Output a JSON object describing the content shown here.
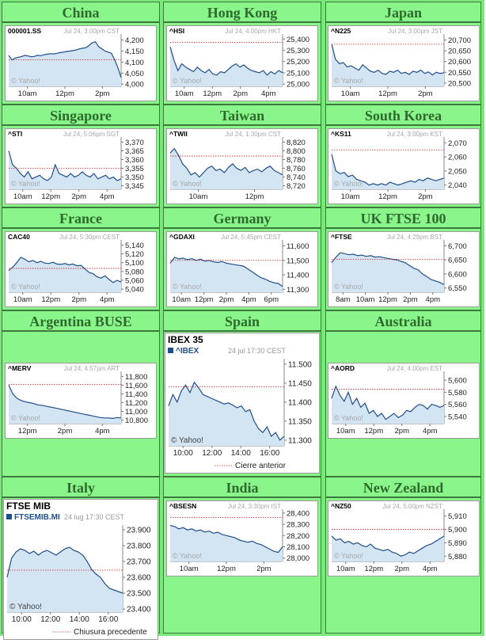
{
  "regions": [
    {
      "title": "China",
      "chart": {
        "symbol": "000001.SS",
        "time": "Jul 24, 3:00pm CST",
        "yticks": [
          "4,200",
          "4,150",
          "4,100",
          "4,050",
          "4,000"
        ],
        "ymin": 3990,
        "ymax": 4220,
        "xticks": [
          "10am",
          "12pm",
          "2pm"
        ],
        "prev": 4110,
        "values": [
          4130,
          4110,
          4118,
          4122,
          4125,
          4130,
          4128,
          4124,
          4126,
          4131,
          4129,
          4133,
          4136,
          4138,
          4137,
          4140,
          4143,
          4145,
          4148,
          4150,
          4152,
          4155,
          4160,
          4163,
          4165,
          4175,
          4188,
          4192,
          4170,
          4160,
          4150,
          4145,
          4140,
          4110,
          4075,
          4030
        ]
      }
    },
    {
      "title": "Hong Kong",
      "chart": {
        "symbol": "^HSI",
        "time": "Jul 24, 4:00pm HKT",
        "yticks": [
          "25,400",
          "25,300",
          "25,200",
          "25,100",
          "25,000"
        ],
        "ymin": 24980,
        "ymax": 25430,
        "xticks": [
          "10am",
          "12pm",
          "2pm",
          "4pm"
        ],
        "prev": 25370,
        "values": [
          25330,
          25210,
          25120,
          25180,
          25150,
          25130,
          25110,
          25150,
          25120,
          25100,
          25130,
          25090,
          25080,
          25110,
          25100,
          25130,
          25160,
          25180,
          25150,
          25170,
          25140,
          25120,
          25110,
          25100,
          25120,
          25080,
          25110,
          25090,
          25120,
          25100
        ]
      }
    },
    {
      "title": "Japan",
      "chart": {
        "symbol": "^N225",
        "time": "Jul 24, 3:00pm JST",
        "yticks": [
          "20,700",
          "20,650",
          "20,600",
          "20,550",
          "20,500"
        ],
        "ymin": 20485,
        "ymax": 20720,
        "xticks": [
          "10am",
          "12pm",
          "2pm"
        ],
        "prev": 20680,
        "values": [
          20680,
          20610,
          20590,
          20595,
          20575,
          20580,
          20570,
          20560,
          20585,
          20570,
          20555,
          20550,
          20560,
          20545,
          20540,
          20555,
          20550,
          20560,
          20545,
          20550,
          20540,
          20555,
          20550,
          20560,
          20545,
          20552,
          20538,
          20550,
          20545,
          20548
        ]
      }
    },
    {
      "title": "Singapore",
      "chart": {
        "symbol": "^STI",
        "time": "Jul 24, 5:06pm SGT",
        "yticks": [
          "3,370",
          "3,365",
          "3,360",
          "3,355",
          "3,350",
          "3,345"
        ],
        "ymin": 3343,
        "ymax": 3372,
        "xticks": [
          "10am",
          "12pm",
          "2pm",
          "4pm"
        ],
        "prev": 3355,
        "values": [
          3365,
          3357,
          3355,
          3352,
          3350,
          3353,
          3349,
          3350,
          3351,
          3349,
          3348,
          3350,
          3357,
          3352,
          3351,
          3350,
          3352,
          3350,
          3351,
          3353,
          3351,
          3350,
          3352,
          3349,
          3350,
          3351,
          3349,
          3350,
          3348,
          3349
        ]
      }
    },
    {
      "title": "Taiwan",
      "chart": {
        "symbol": "^TWII",
        "time": "Jul 24, 1:30pm CST",
        "yticks": [
          "8,820",
          "8,800",
          "8,780",
          "8,760",
          "8,740",
          "8,720"
        ],
        "ymin": 8712,
        "ymax": 8828,
        "xticks": [
          "10am",
          "12pm"
        ],
        "prev": 8788,
        "values": [
          8795,
          8805,
          8790,
          8770,
          8760,
          8745,
          8750,
          8740,
          8750,
          8760,
          8765,
          8755,
          8758,
          8750,
          8762,
          8770,
          8760,
          8755,
          8762,
          8750,
          8755,
          8758,
          8752,
          8760,
          8765,
          8755,
          8750,
          8745
        ]
      }
    },
    {
      "title": "South Korea",
      "chart": {
        "symbol": "^KS11",
        "time": "Jul 24, 3:00pm KST",
        "yticks": [
          "2,070",
          "2,060",
          "2,050",
          "2,040"
        ],
        "ymin": 2037,
        "ymax": 2073,
        "xticks": [
          "10am",
          "12pm",
          "2pm"
        ],
        "prev": 2065,
        "values": [
          2062,
          2050,
          2048,
          2049,
          2046,
          2047,
          2044,
          2043,
          2042,
          2040,
          2041,
          2040,
          2041,
          2040,
          2042,
          2041,
          2040,
          2041,
          2042,
          2043,
          2042,
          2044,
          2043,
          2045,
          2044,
          2043,
          2044,
          2045
        ]
      }
    },
    {
      "title": "France",
      "chart": {
        "symbol": "CAC40",
        "time": "Jul 24, 5:30pm CEST",
        "yticks": [
          "5,140",
          "5,120",
          "5,100",
          "5,080",
          "5,060",
          "5,040"
        ],
        "ymin": 5033,
        "ymax": 5148,
        "xticks": [
          "10am",
          "12pm",
          "2pm",
          "4pm"
        ],
        "prev": 5087,
        "values": [
          5082,
          5090,
          5100,
          5112,
          5108,
          5102,
          5105,
          5100,
          5103,
          5099,
          5098,
          5101,
          5097,
          5096,
          5098,
          5095,
          5097,
          5093,
          5094,
          5086,
          5078,
          5075,
          5068,
          5065,
          5070,
          5062,
          5055,
          5060,
          5056
        ]
      }
    },
    {
      "title": "Germany",
      "chart": {
        "symbol": "^GDAXI",
        "time": "Jul 24, 5:45pm CEST",
        "yticks": [
          "11,600",
          "11,500",
          "11,400",
          "11,300"
        ],
        "ymin": 11280,
        "ymax": 11630,
        "xticks": [
          "10am",
          "12pm",
          "2pm",
          "4pm",
          "6pm"
        ],
        "prev": 11500,
        "values": [
          11480,
          11520,
          11510,
          11515,
          11505,
          11512,
          11500,
          11508,
          11495,
          11500,
          11490,
          11485,
          11492,
          11480,
          11475,
          11470,
          11465,
          11460,
          11440,
          11420,
          11400,
          11380,
          11370,
          11355,
          11345,
          11340,
          11320
        ]
      }
    },
    {
      "title": "UK FTSE 100",
      "chart": {
        "symbol": "^FTSE",
        "time": "Jul 24, 4:29pm BST",
        "yticks": [
          "6,700",
          "6,650",
          "6,600",
          "6,550"
        ],
        "ymin": 6535,
        "ymax": 6715,
        "xticks": [
          "8am",
          "10am",
          "12pm",
          "2pm",
          "4pm"
        ],
        "prev": 6652,
        "values": [
          6640,
          6660,
          6675,
          6672,
          6668,
          6670,
          6665,
          6667,
          6662,
          6665,
          6660,
          6661,
          6658,
          6655,
          6652,
          6650,
          6645,
          6640,
          6630,
          6620,
          6615,
          6600,
          6590,
          6580,
          6575,
          6570,
          6562
        ]
      }
    },
    {
      "title": "Argentina BUSE",
      "chart": {
        "symbol": "^MERV",
        "time": "Jul 24, 4:57pm ART",
        "yticks": [
          "11,800",
          "11,600",
          "11,400",
          "11,200",
          "11,000",
          "10,800"
        ],
        "ymin": 10720,
        "ymax": 11880,
        "xticks": [
          "12pm",
          "2pm",
          "4pm"
        ],
        "prev": 11620,
        "values": [
          11600,
          11400,
          11300,
          11250,
          11220,
          11200,
          11180,
          11150,
          11140,
          11120,
          11100,
          11080,
          11060,
          11040,
          11020,
          11000,
          10980,
          10960,
          10940,
          10920,
          10900,
          10880,
          10860,
          10850,
          10850,
          10840,
          10860,
          10850
        ]
      }
    },
    {
      "title": "Spain",
      "chart": {
        "name": "IBEX 35",
        "symbol": "^IBEX",
        "time": "24 jul 17:30 CEST",
        "yticks": [
          "11.500",
          "11.450",
          "11.400",
          "11.350",
          "11.300"
        ],
        "ymin": 11285,
        "ymax": 11510,
        "xticks": [
          "10:00",
          "12:00",
          "14:00",
          "16:00"
        ],
        "prev": 11440,
        "legend": "Cierre anterior",
        "values": [
          11390,
          11420,
          11400,
          11430,
          11445,
          11425,
          11452,
          11438,
          11420,
          11415,
          11410,
          11405,
          11400,
          11395,
          11398,
          11392,
          11385,
          11390,
          11375,
          11380,
          11350,
          11330,
          11320,
          11335,
          11310,
          11320,
          11300,
          11310
        ]
      }
    },
    {
      "title": "Australia",
      "chart": {
        "symbol": "^AORD",
        "time": "Jul 24, 4:00pm EST",
        "yticks": [
          "5,600",
          "5,580",
          "5,560",
          "5,540"
        ],
        "ymin": 5528,
        "ymax": 5612,
        "xticks": [
          "10am",
          "12pm",
          "2pm",
          "4pm"
        ],
        "prev": 5585,
        "values": [
          5570,
          5590,
          5575,
          5565,
          5580,
          5560,
          5570,
          5555,
          5562,
          5545,
          5550,
          5540,
          5545,
          5535,
          5540,
          5545,
          5538,
          5542,
          5550,
          5548,
          5555,
          5560,
          5558,
          5552,
          5560,
          5558,
          5555,
          5558
        ]
      }
    },
    {
      "title": "Italy",
      "chart": {
        "name": "FTSE MIB",
        "symbol": "FTSEMIB.MI",
        "time": "24 lug 17:30 CEST",
        "yticks": [
          "23.900",
          "23.800",
          "23.700",
          "23.600",
          "23.500",
          "23.400"
        ],
        "ymin": 23380,
        "ymax": 23920,
        "xticks": [
          "10:00",
          "12:00",
          "14:00",
          "16:00"
        ],
        "prev": 23645,
        "legend": "Chiusura precedente",
        "values": [
          23600,
          23720,
          23760,
          23780,
          23770,
          23750,
          23765,
          23740,
          23760,
          23770,
          23755,
          23740,
          23760,
          23780,
          23790,
          23770,
          23760,
          23740,
          23700,
          23650,
          23620,
          23600,
          23560,
          23530,
          23520,
          23510,
          23500
        ]
      }
    },
    {
      "title": "India",
      "chart": {
        "symbol": "^BSESN",
        "time": "Jul 24, 3:30pm IST",
        "yticks": [
          "28,400",
          "28,300",
          "28,200",
          "28,100",
          "28,000"
        ],
        "ymin": 27970,
        "ymax": 28420,
        "xticks": [
          "10am",
          "12pm",
          "2pm"
        ],
        "prev": 28360,
        "values": [
          28290,
          28280,
          28260,
          28270,
          28250,
          28260,
          28240,
          28250,
          28230,
          28240,
          28220,
          28230,
          28210,
          28200,
          28190,
          28180,
          28160,
          28150,
          28140,
          28150,
          28130,
          28120,
          28100,
          28080,
          28060,
          28050,
          28100
        ]
      }
    },
    {
      "title": "New Zealand",
      "chart": {
        "symbol": "^NZ50",
        "time": "Jul 24, 5:00pm NZST",
        "yticks": [
          "5,910",
          "5,900",
          "5,890",
          "5,880"
        ],
        "ymin": 5876,
        "ymax": 5914,
        "xticks": [
          "10am",
          "12pm",
          "2pm",
          "4pm"
        ],
        "prev": 5900,
        "values": [
          5895,
          5892,
          5893,
          5890,
          5891,
          5889,
          5890,
          5888,
          5887,
          5889,
          5886,
          5885,
          5884,
          5885,
          5883,
          5882,
          5880,
          5881,
          5883,
          5882,
          5884,
          5886,
          5888,
          5889,
          5891,
          5893,
          5895
        ]
      }
    }
  ],
  "credit": "© Yahoo!"
}
